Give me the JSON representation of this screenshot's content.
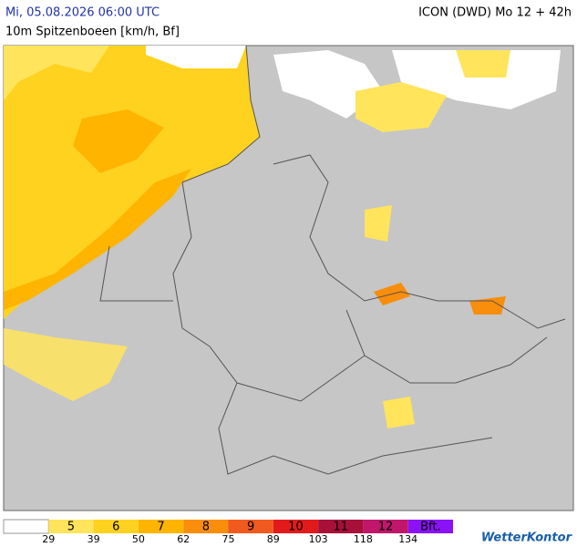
{
  "header": {
    "datetime": "Mi, 05.08.2026 06:00 UTC",
    "parameter": "10m Spitzenboeen [km/h, Bf]",
    "model": "ICON (DWD) Mo 12 + 42h"
  },
  "legend": {
    "below_color": "#ffffff",
    "classes": [
      {
        "label": "5",
        "color": "#ffe45c"
      },
      {
        "label": "6",
        "color": "#ffd21f"
      },
      {
        "label": "7",
        "color": "#ffb400"
      },
      {
        "label": "8",
        "color": "#f98d0c"
      },
      {
        "label": "9",
        "color": "#f05a1e"
      },
      {
        "label": "10",
        "color": "#e11b1b"
      },
      {
        "label": "11",
        "color": "#a8103a"
      },
      {
        "label": "12",
        "color": "#c0176b"
      },
      {
        "label": "Bft.",
        "color": "#8a12f5"
      }
    ],
    "thresholds": [
      29,
      39,
      50,
      62,
      75,
      89,
      103,
      118,
      134
    ]
  },
  "logo": "WetterKontor"
}
